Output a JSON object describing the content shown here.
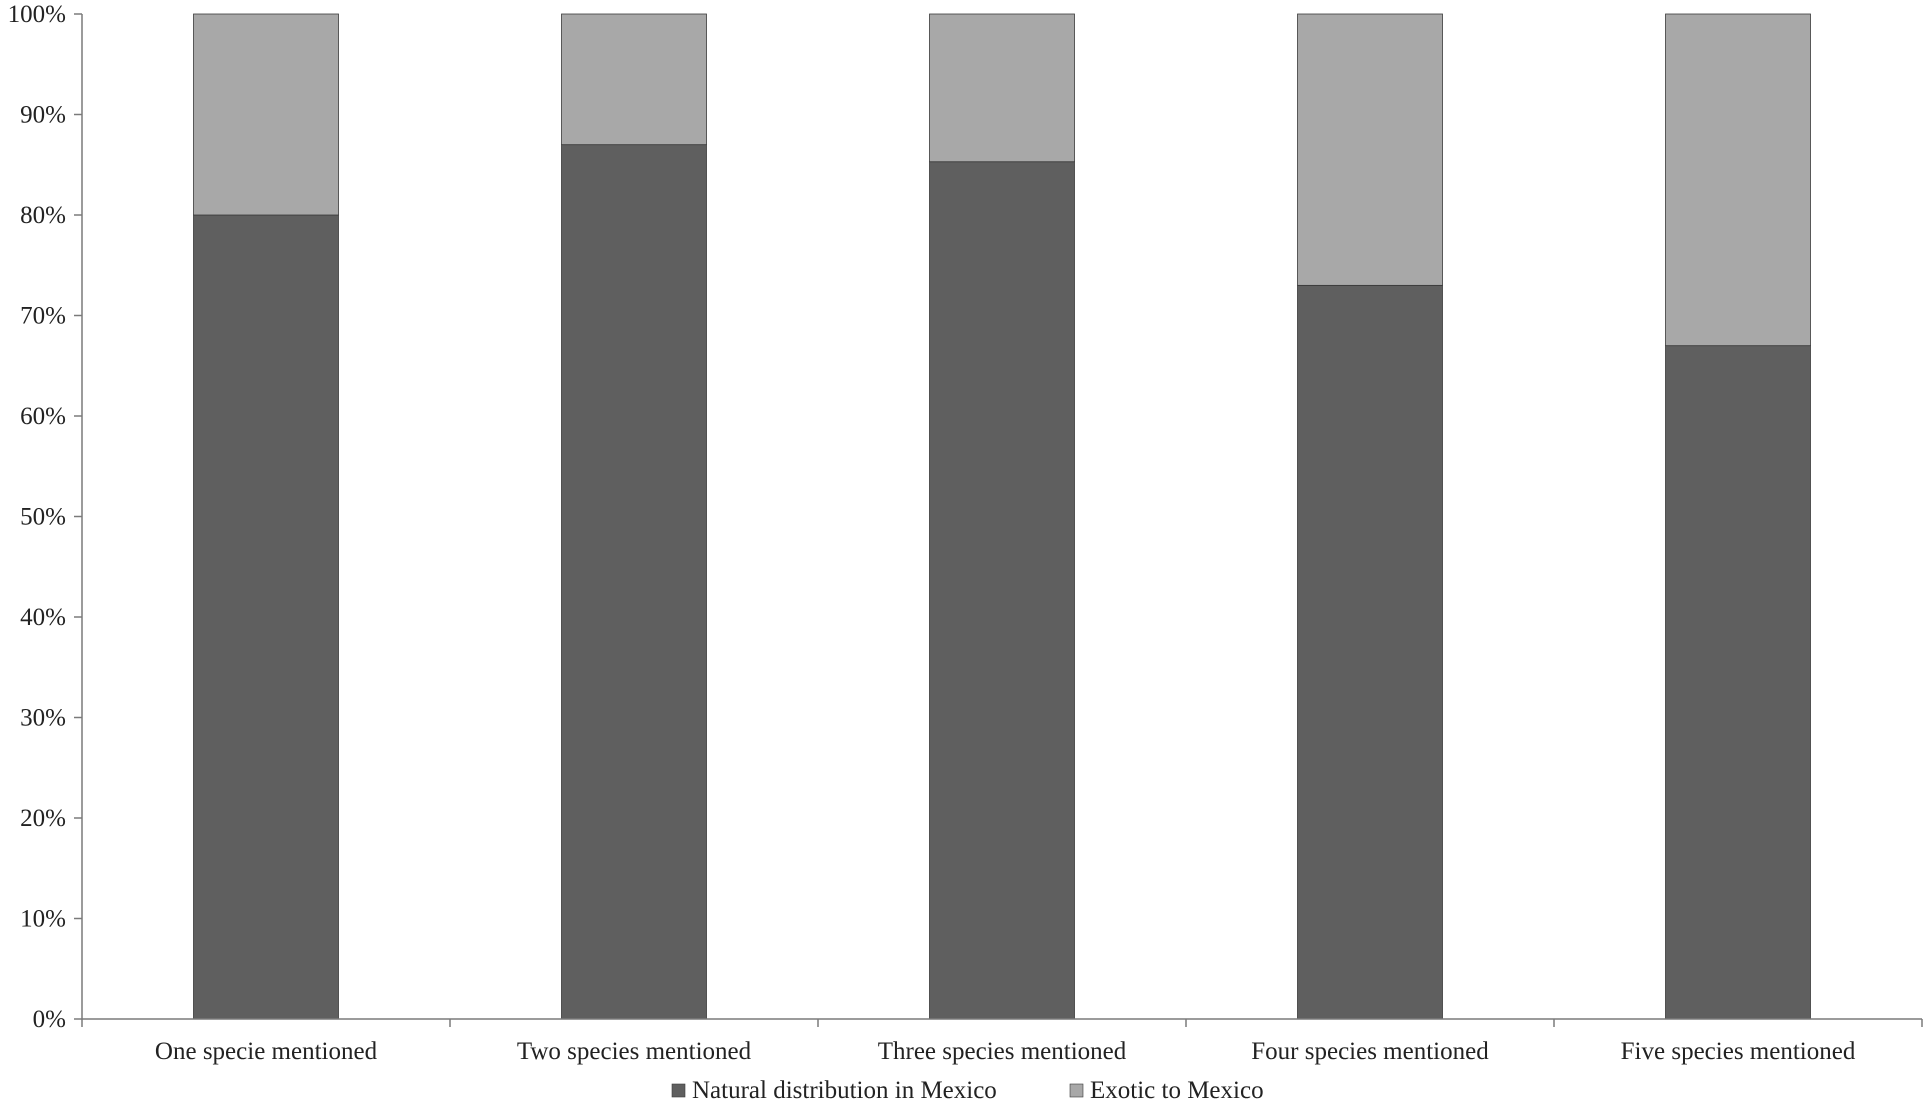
{
  "chart_data": {
    "type": "bar",
    "stacked": true,
    "categories": [
      "One specie mentioned",
      "Two species mentioned",
      "Three species mentioned",
      "Four species mentioned",
      "Five species mentioned"
    ],
    "series": [
      {
        "name": "Natural distribution in Mexico",
        "values": [
          80,
          87,
          85.3,
          73,
          67
        ],
        "color": "#5f5f5f"
      },
      {
        "name": "Exotic to Mexico",
        "values": [
          20,
          13,
          14.7,
          27,
          33
        ],
        "color": "#a8a8a8"
      }
    ],
    "y_ticks": [
      "0%",
      "10%",
      "20%",
      "30%",
      "40%",
      "50%",
      "60%",
      "70%",
      "80%",
      "90%",
      "100%"
    ],
    "ylim": [
      0,
      100
    ],
    "title": "",
    "xlabel": "",
    "ylabel": "",
    "grid": false,
    "legend_position": "bottom"
  }
}
